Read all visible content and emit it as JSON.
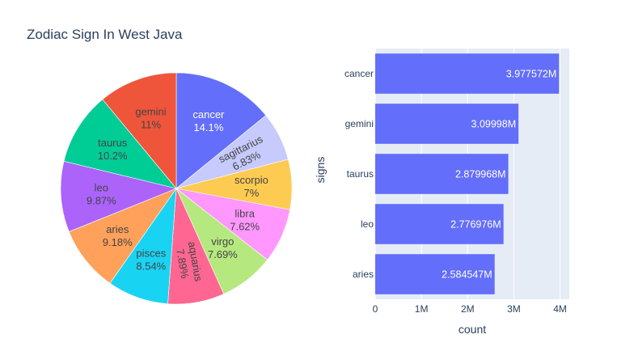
{
  "title": "Zodiac Sign In West Java",
  "chart_data": [
    {
      "type": "pie",
      "labels": [
        "cancer",
        "sagittarius",
        "scorpio",
        "libra",
        "virgo",
        "aquarius",
        "pisces",
        "aries",
        "leo",
        "taurus",
        "gemini"
      ],
      "percents": [
        14.1,
        6.83,
        7.0,
        7.62,
        7.69,
        7.89,
        8.54,
        9.18,
        9.87,
        10.2,
        11.0
      ],
      "percent_labels": [
        "14.1%",
        "6.83%",
        "7%",
        "7.62%",
        "7.69%",
        "7.89%",
        "8.54%",
        "9.18%",
        "9.87%",
        "10.2%",
        "11%"
      ],
      "colors": [
        "#636efa",
        "#c6cafc",
        "#fecb52",
        "#ff97ff",
        "#b6e880",
        "#ff6692",
        "#19d3f3",
        "#ffa15a",
        "#ab63fa",
        "#00cc96",
        "#ef553b"
      ],
      "label_colors": [
        "#ffffff",
        "#444444",
        "#444444",
        "#444444",
        "#444444",
        "#444444",
        "#444444",
        "#444444",
        "#444444",
        "#444444",
        "#444444"
      ],
      "label_rotated": [
        false,
        true,
        false,
        false,
        false,
        true,
        false,
        false,
        false,
        false,
        false
      ]
    },
    {
      "type": "bar",
      "orientation": "horizontal",
      "categories": [
        "cancer",
        "gemini",
        "taurus",
        "leo",
        "aries"
      ],
      "values": [
        3977572,
        3099980,
        2879968,
        2776976,
        2584547
      ],
      "value_labels": [
        "3.977572M",
        "3.09998M",
        "2.879968M",
        "2.776976M",
        "2.584547M"
      ],
      "xlabel": "count",
      "ylabel": "signs",
      "xlim": [
        0,
        4200000
      ],
      "xticks": [
        0,
        1000000,
        2000000,
        3000000,
        4000000
      ],
      "xtick_labels": [
        "0",
        "1M",
        "2M",
        "3M",
        "4M"
      ],
      "bar_color": "#636efa",
      "plot_bg": "#e5ecf6"
    }
  ]
}
